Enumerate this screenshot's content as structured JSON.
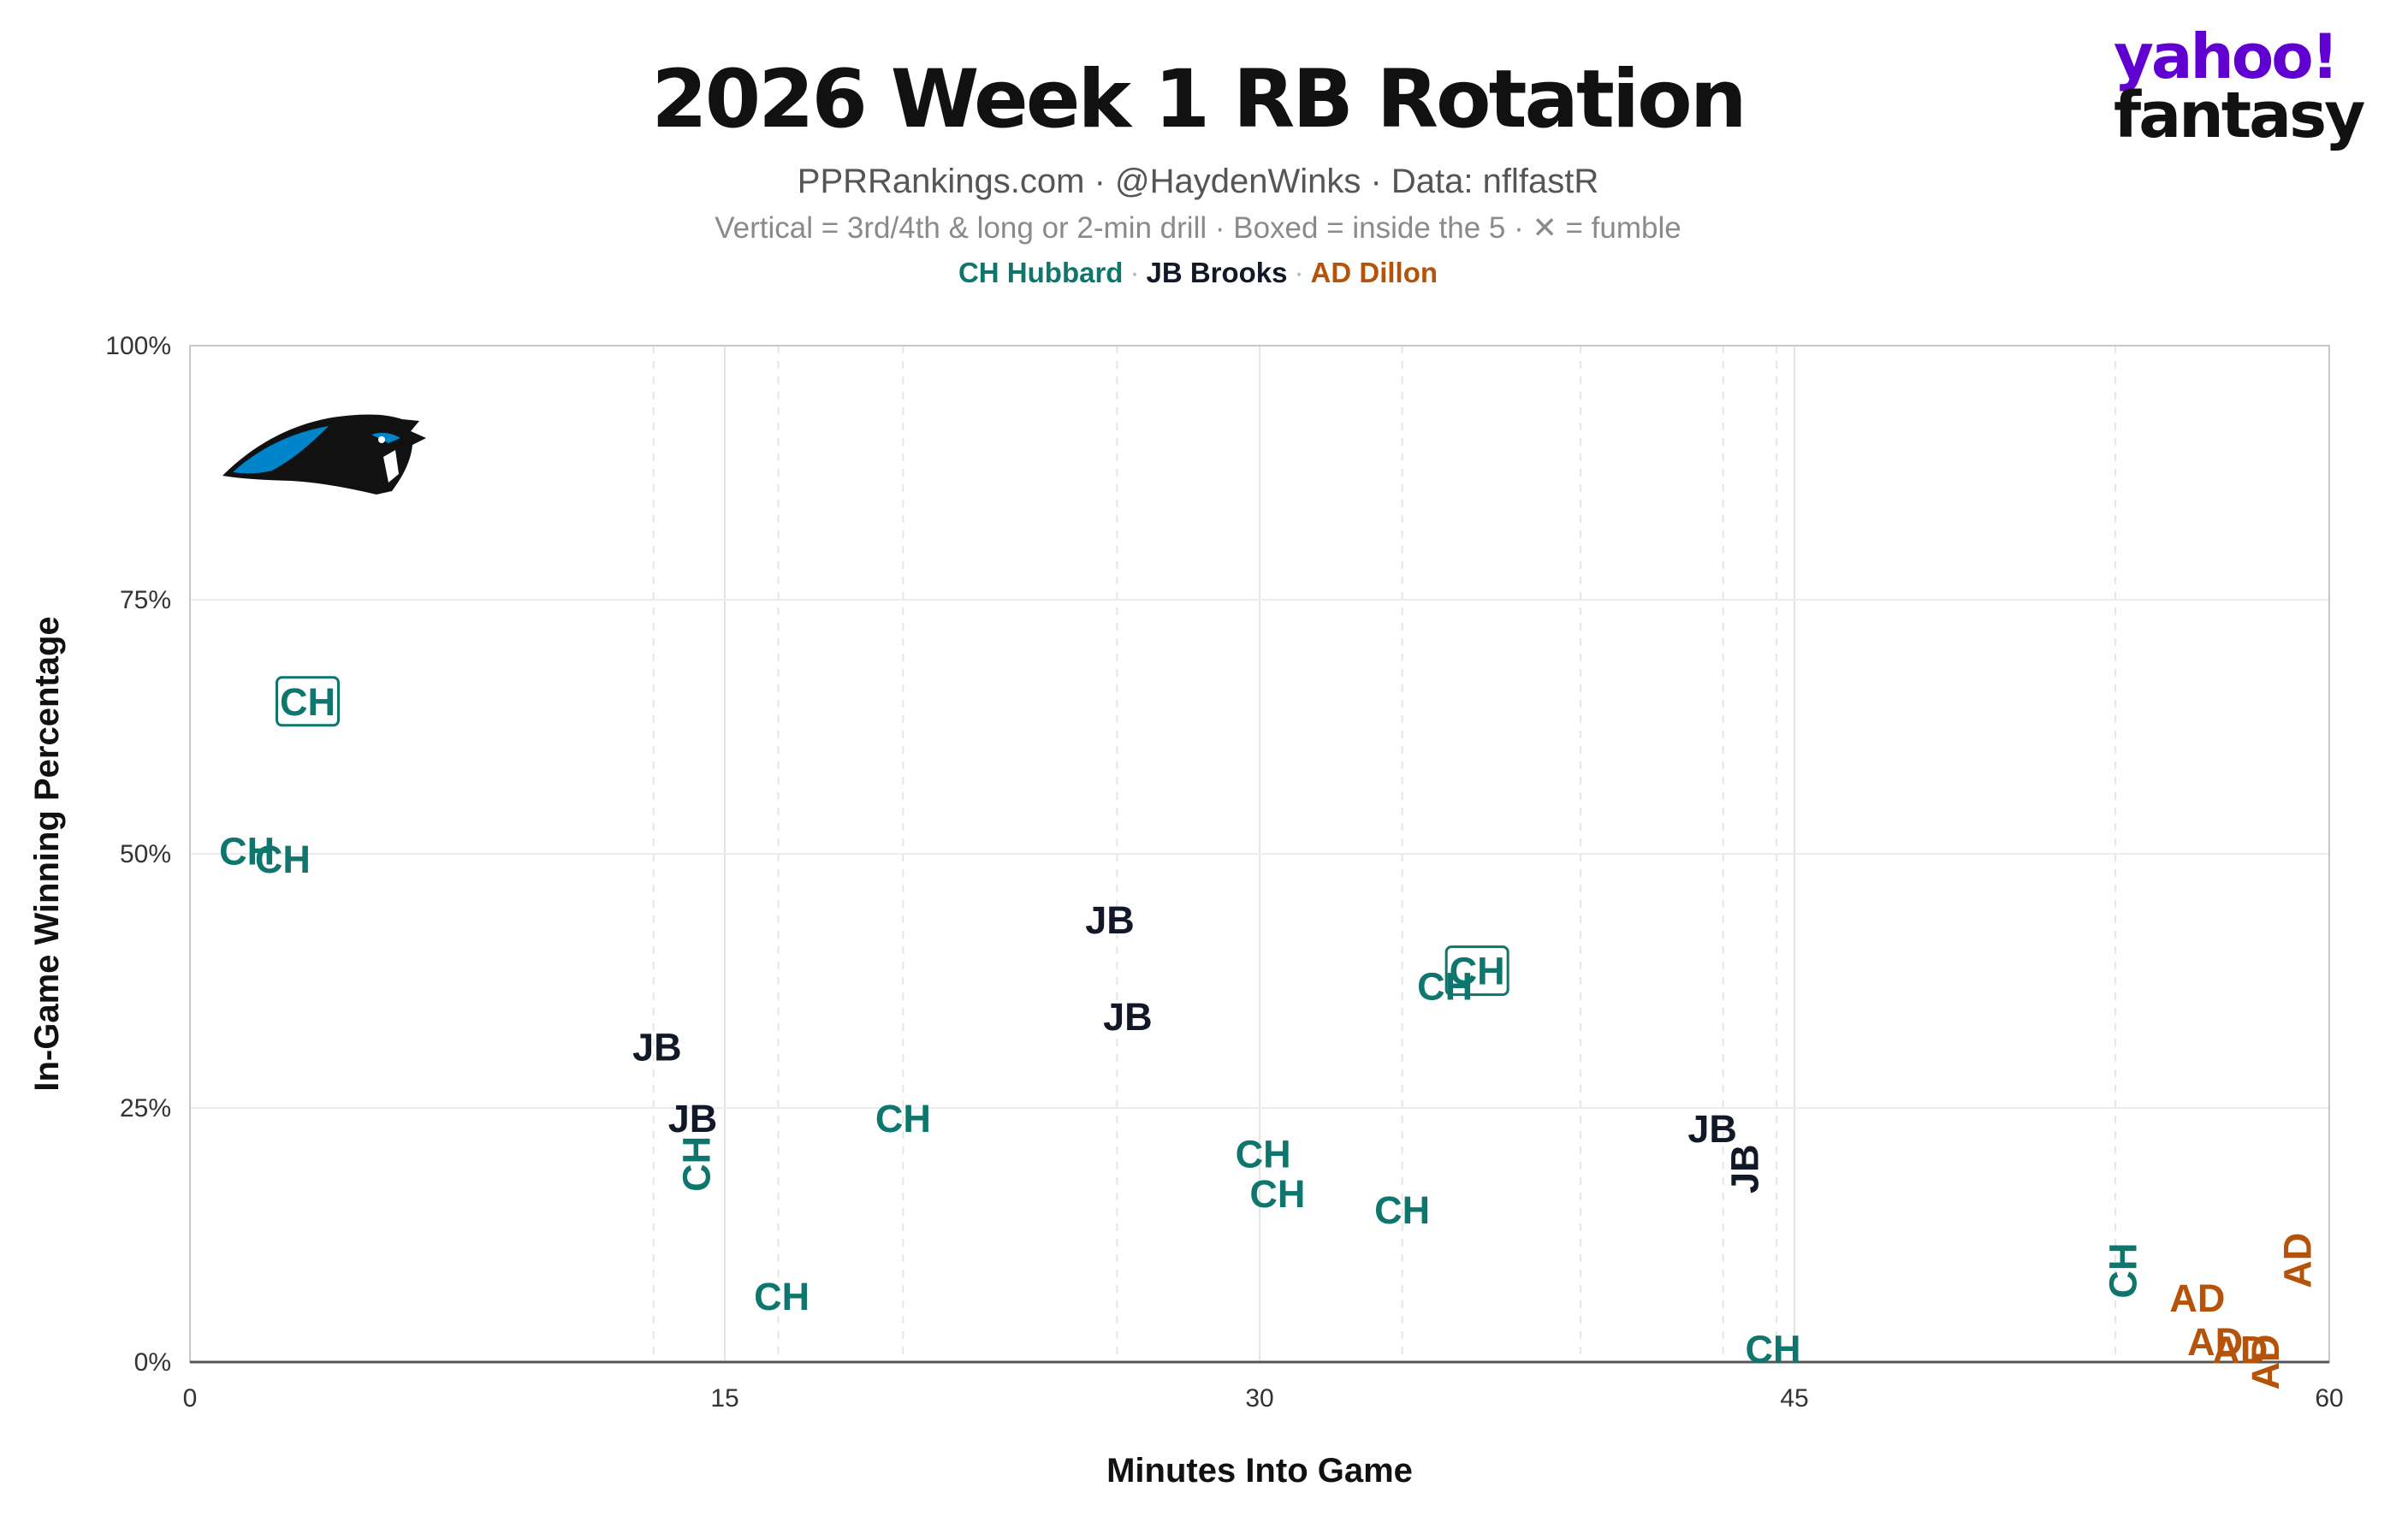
{
  "header": {
    "title": "2026 Week 1 RB Rotation",
    "credits": "PPRRankings.com · @HaydenWinks · Data: nflfastR",
    "note": "Vertical = 3rd/4th & long or 2-min drill · Boxed = inside the 5 · ✕ = fumble"
  },
  "legend": {
    "separator": "·",
    "items": [
      {
        "label": "CH Hubbard",
        "color": "#0f766e"
      },
      {
        "label": "JB Brooks",
        "color": "#111827"
      },
      {
        "label": "AD Dillon",
        "color": "#b45309"
      }
    ]
  },
  "brand": {
    "line1": "yahoo!",
    "line2": "fantasy"
  },
  "team_logo": {
    "icon": "panther-logo-icon"
  },
  "chart_data": {
    "type": "scatter",
    "title": "2026 Week 1 RB Rotation",
    "xlabel": "Minutes Into Game",
    "ylabel": "In-Game Winning Percentage",
    "xlim": [
      0,
      60
    ],
    "ylim": [
      0,
      100
    ],
    "xticks": [
      0,
      15,
      30,
      45,
      60
    ],
    "xtick_labels": [
      "0",
      "15",
      "30",
      "45",
      "60"
    ],
    "yticks": [
      0,
      25,
      50,
      75,
      100
    ],
    "ytick_labels": [
      "0%",
      "25%",
      "50%",
      "75%",
      "100%"
    ],
    "grid": true,
    "quarter_lines": [
      13,
      16.5,
      20,
      26,
      34,
      39,
      43,
      44.5,
      54
    ],
    "series": [
      {
        "name": "CH Hubbard",
        "label": "CH",
        "color": "#0f766e",
        "points": [
          {
            "x": 3.3,
            "y": 65,
            "boxed": true
          },
          {
            "x": 1.6,
            "y": 50.3
          },
          {
            "x": 2.6,
            "y": 49.5
          },
          {
            "x": 14.2,
            "y": 19.5,
            "vertical": true
          },
          {
            "x": 16.6,
            "y": 6.5
          },
          {
            "x": 20.0,
            "y": 24
          },
          {
            "x": 30.1,
            "y": 20.5
          },
          {
            "x": 30.5,
            "y": 16.6
          },
          {
            "x": 34.0,
            "y": 15
          },
          {
            "x": 35.2,
            "y": 37
          },
          {
            "x": 36.1,
            "y": 38.5,
            "boxed": true
          },
          {
            "x": 44.4,
            "y": 1.3
          },
          {
            "x": 54.2,
            "y": 9,
            "vertical": true
          }
        ]
      },
      {
        "name": "JB Brooks",
        "label": "JB",
        "color": "#111827",
        "points": [
          {
            "x": 13.1,
            "y": 31
          },
          {
            "x": 14.1,
            "y": 24
          },
          {
            "x": 25.8,
            "y": 43.5
          },
          {
            "x": 26.3,
            "y": 34
          },
          {
            "x": 42.7,
            "y": 23
          },
          {
            "x": 43.6,
            "y": 19,
            "vertical": true
          }
        ]
      },
      {
        "name": "AD Dillon",
        "label": "AD",
        "color": "#b45309",
        "points": [
          {
            "x": 56.3,
            "y": 6.3
          },
          {
            "x": 56.8,
            "y": 2
          },
          {
            "x": 57.5,
            "y": 1.2
          },
          {
            "x": 58.2,
            "y": 0,
            "vertical": true
          },
          {
            "x": 59.1,
            "y": 10,
            "vertical": true
          }
        ]
      }
    ]
  }
}
